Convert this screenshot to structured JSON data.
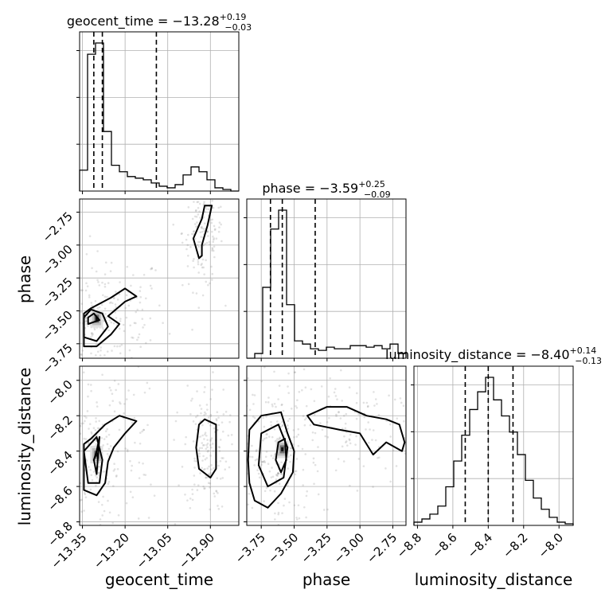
{
  "chart_data": {
    "type": "corner",
    "parameters": [
      "geocent_time",
      "phase",
      "luminosity_distance"
    ],
    "titles": [
      {
        "param": "geocent_time",
        "prefix": "geocent_time = ",
        "median": "−13.28",
        "plus": "+0.19",
        "minus": "−0.03"
      },
      {
        "param": "phase",
        "prefix": "phase = ",
        "median": "−3.59",
        "plus": "+0.25",
        "minus": "−0.09"
      },
      {
        "param": "luminosity_distance",
        "prefix": "luminosity_distance = ",
        "median": "−8.40",
        "plus": "+0.14",
        "minus": "−0.13"
      }
    ],
    "axes": {
      "geocent_time": {
        "range": [
          -13.36,
          -12.8
        ],
        "ticks": [
          -13.35,
          -13.2,
          -13.05,
          -12.9
        ],
        "tick_labels": [
          "−13.35",
          "−13.20",
          "−13.05",
          "−12.90"
        ]
      },
      "phase": {
        "range": [
          -3.86,
          -2.65
        ],
        "ticks": [
          -3.75,
          -3.5,
          -3.25,
          -3.0,
          -2.75
        ],
        "tick_labels": [
          "−3.75",
          "−3.50",
          "−3.25",
          "−3.00",
          "−2.75"
        ]
      },
      "luminosity_distance": {
        "range": [
          -8.82,
          -7.92
        ],
        "ticks": [
          -8.8,
          -8.6,
          -8.4,
          -8.2,
          -8.0
        ],
        "tick_labels": [
          "−8.8",
          "−8.6",
          "−8.4",
          "−8.2",
          "−8.0"
        ]
      }
    },
    "axis_labels": {
      "geocent_time": "geocent_time",
      "phase": "phase",
      "luminosity_distance": "luminosity_distance"
    },
    "histograms": {
      "geocent_time": {
        "bin_edges": [
          -13.36,
          -13.332,
          -13.304,
          -13.276,
          -13.248,
          -13.22,
          -13.192,
          -13.164,
          -13.136,
          -13.108,
          -13.08,
          -13.052,
          -13.024,
          -12.996,
          -12.968,
          -12.94,
          -12.912,
          -12.884,
          -12.856,
          -12.828,
          -12.8
        ],
        "values": [
          0.13,
          0.85,
          0.92,
          0.37,
          0.16,
          0.12,
          0.09,
          0.08,
          0.07,
          0.05,
          0.03,
          0.02,
          0.04,
          0.1,
          0.15,
          0.12,
          0.07,
          0.02,
          0.01,
          0.0
        ],
        "quantiles": [
          -13.31,
          -13.28,
          -13.09
        ]
      },
      "phase": {
        "bin_edges": [
          -3.86,
          -3.7995,
          -3.739,
          -3.6785,
          -3.618,
          -3.5575,
          -3.497,
          -3.4365,
          -3.376,
          -3.3155,
          -3.255,
          -3.1945,
          -3.134,
          -3.0735,
          -3.013,
          -2.9525,
          -2.892,
          -2.8315,
          -2.771,
          -2.7105,
          -2.65
        ],
        "values": [
          0.0,
          0.03,
          0.45,
          0.82,
          0.94,
          0.34,
          0.11,
          0.09,
          0.06,
          0.05,
          0.07,
          0.06,
          0.06,
          0.08,
          0.08,
          0.07,
          0.08,
          0.06,
          0.09,
          0.03
        ],
        "quantiles": [
          -3.68,
          -3.59,
          -3.34
        ]
      },
      "luminosity_distance": {
        "bin_edges": [
          -8.82,
          -8.775,
          -8.73,
          -8.685,
          -8.64,
          -8.595,
          -8.55,
          -8.505,
          -8.46,
          -8.415,
          -8.37,
          -8.325,
          -8.28,
          -8.235,
          -8.19,
          -8.145,
          -8.1,
          -8.055,
          -8.01,
          -7.965,
          -7.92
        ],
        "values": [
          0.02,
          0.04,
          0.07,
          0.12,
          0.24,
          0.4,
          0.56,
          0.72,
          0.83,
          0.92,
          0.78,
          0.68,
          0.58,
          0.44,
          0.28,
          0.17,
          0.1,
          0.05,
          0.02,
          0.01
        ],
        "quantiles": [
          -8.53,
          -8.4,
          -8.26
        ]
      }
    },
    "contours": {
      "phase_vs_geocent_time": [
        [
          [
            -13.345,
            -3.77
          ],
          [
            -13.3,
            -3.77
          ],
          [
            -13.25,
            -3.68
          ],
          [
            -13.22,
            -3.6
          ],
          [
            -13.26,
            -3.54
          ],
          [
            -13.2,
            -3.43
          ],
          [
            -13.16,
            -3.39
          ],
          [
            -13.2,
            -3.33
          ],
          [
            -13.25,
            -3.4
          ],
          [
            -13.32,
            -3.48
          ],
          [
            -13.345,
            -3.52
          ]
        ],
        [
          [
            -13.345,
            -3.7
          ],
          [
            -13.3,
            -3.73
          ],
          [
            -13.26,
            -3.62
          ],
          [
            -13.28,
            -3.52
          ],
          [
            -13.32,
            -3.49
          ],
          [
            -13.345,
            -3.55
          ]
        ],
        [
          [
            -13.33,
            -3.6
          ],
          [
            -13.29,
            -3.57
          ],
          [
            -13.31,
            -3.52
          ],
          [
            -13.33,
            -3.55
          ]
        ],
        [
          [
            -12.94,
            -3.1
          ],
          [
            -12.96,
            -2.95
          ],
          [
            -12.93,
            -2.8
          ],
          [
            -12.92,
            -2.7
          ],
          [
            -12.895,
            -2.7
          ],
          [
            -12.91,
            -2.85
          ],
          [
            -12.93,
            -3.0
          ],
          [
            -12.93,
            -3.08
          ]
        ]
      ],
      "luminosity_distance_vs_geocent_time": [
        [
          [
            -13.345,
            -8.36
          ],
          [
            -13.32,
            -8.33
          ],
          [
            -13.27,
            -8.25
          ],
          [
            -13.22,
            -8.2
          ],
          [
            -13.16,
            -8.23
          ],
          [
            -13.2,
            -8.3
          ],
          [
            -13.24,
            -8.38
          ],
          [
            -13.26,
            -8.46
          ],
          [
            -13.27,
            -8.58
          ],
          [
            -13.3,
            -8.65
          ],
          [
            -13.345,
            -8.62
          ]
        ],
        [
          [
            -13.345,
            -8.4
          ],
          [
            -13.3,
            -8.32
          ],
          [
            -13.28,
            -8.45
          ],
          [
            -13.29,
            -8.58
          ],
          [
            -13.33,
            -8.58
          ]
        ],
        [
          [
            -13.3,
            -8.4
          ],
          [
            -13.29,
            -8.32
          ],
          [
            -13.3,
            -8.53
          ],
          [
            -13.31,
            -8.45
          ]
        ],
        [
          [
            -12.94,
            -8.25
          ],
          [
            -12.92,
            -8.22
          ],
          [
            -12.88,
            -8.25
          ],
          [
            -12.88,
            -8.5
          ],
          [
            -12.9,
            -8.55
          ],
          [
            -12.94,
            -8.5
          ],
          [
            -12.95,
            -8.38
          ]
        ]
      ],
      "luminosity_distance_vs_phase": [
        [
          [
            -3.85,
            -8.45
          ],
          [
            -3.84,
            -8.28
          ],
          [
            -3.75,
            -8.2
          ],
          [
            -3.6,
            -8.18
          ],
          [
            -3.55,
            -8.3
          ],
          [
            -3.5,
            -8.4
          ],
          [
            -3.51,
            -8.52
          ],
          [
            -3.6,
            -8.64
          ],
          [
            -3.7,
            -8.72
          ],
          [
            -3.8,
            -8.68
          ],
          [
            -3.84,
            -8.58
          ]
        ],
        [
          [
            -3.77,
            -8.48
          ],
          [
            -3.75,
            -8.3
          ],
          [
            -3.62,
            -8.25
          ],
          [
            -3.55,
            -8.38
          ],
          [
            -3.58,
            -8.55
          ],
          [
            -3.7,
            -8.6
          ]
        ],
        [
          [
            -3.64,
            -8.45
          ],
          [
            -3.62,
            -8.35
          ],
          [
            -3.57,
            -8.33
          ],
          [
            -3.56,
            -8.45
          ],
          [
            -3.6,
            -8.52
          ]
        ],
        [
          [
            -3.4,
            -8.2
          ],
          [
            -3.25,
            -8.15
          ],
          [
            -3.1,
            -8.15
          ],
          [
            -2.95,
            -8.2
          ],
          [
            -2.8,
            -8.22
          ],
          [
            -2.7,
            -8.25
          ],
          [
            -2.66,
            -8.35
          ],
          [
            -2.68,
            -8.4
          ],
          [
            -2.8,
            -8.35
          ],
          [
            -2.9,
            -8.42
          ],
          [
            -3.0,
            -8.3
          ],
          [
            -3.15,
            -8.28
          ],
          [
            -3.35,
            -8.25
          ]
        ]
      ]
    },
    "density_peaks": {
      "phase_vs_geocent_time": [
        -13.3,
        -3.56
      ],
      "luminosity_distance_vs_geocent_time": [
        -13.3,
        -8.42
      ],
      "luminosity_distance_vs_phase": [
        -3.59,
        -8.39
      ]
    },
    "grid": true
  }
}
